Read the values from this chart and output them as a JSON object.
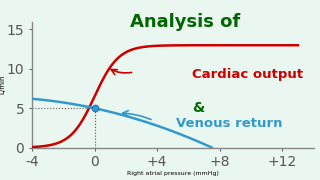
{
  "title": "Analysis of",
  "title_color": "#006600",
  "label_cardiac": "Cardiac output",
  "label_venous": "Venous return",
  "label_amp": "&",
  "amp_color": "#006600",
  "xlabel": "Right atrial pressure (mmHg)",
  "ylabel": "L/min",
  "background_color": "#eaf7f0",
  "xlim": [
    -4,
    14
  ],
  "ylim": [
    0,
    16
  ],
  "xticks": [
    -4,
    0,
    4,
    8,
    12
  ],
  "yticks": [
    0,
    5,
    10,
    15
  ],
  "cardiac_color": "#cc0000",
  "venous_color": "#3399cc",
  "intersection_x": 0,
  "intersection_y": 5,
  "dotted_line_color": "#555555"
}
